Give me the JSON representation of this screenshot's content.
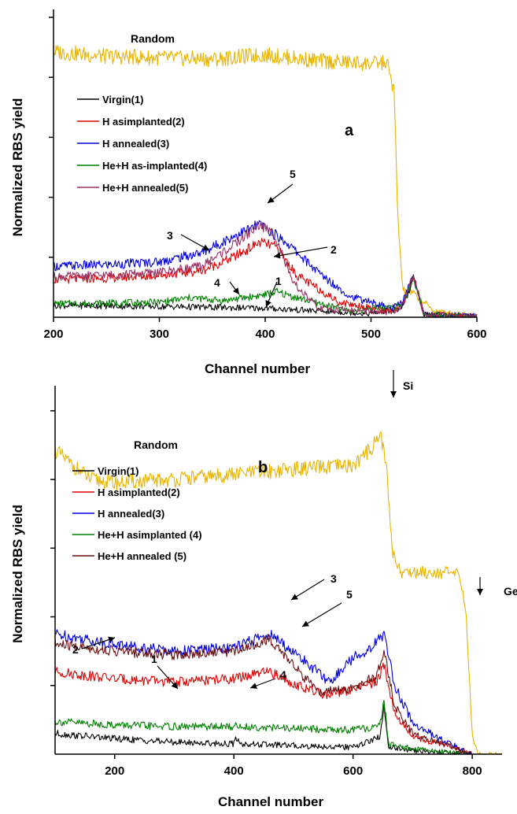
{
  "chart_data": [
    {
      "type": "line",
      "panel_label": "a",
      "xlabel": "Channel number",
      "ylabel": "Normalized RBS yield",
      "xlim": [
        200,
        600
      ],
      "xticks": [
        200,
        300,
        400,
        500,
        600
      ],
      "ylim": [
        0,
        1.0
      ],
      "yticks": [
        0.2,
        0.4,
        0.6,
        0.8,
        1.0
      ],
      "series": [
        {
          "name": "Random",
          "color": "#e8b400",
          "x": [
            200,
            250,
            300,
            350,
            400,
            450,
            500,
            515,
            522,
            525,
            530,
            540,
            560,
            600
          ],
          "y": [
            0.885,
            0.87,
            0.865,
            0.86,
            0.875,
            0.855,
            0.845,
            0.85,
            0.75,
            0.35,
            0.09,
            0.08,
            0.02,
            0.005
          ]
        },
        {
          "name": "Virgin(1)",
          "color": "#000000",
          "x": [
            200,
            300,
            400,
            500,
            530,
            540,
            550,
            600
          ],
          "y": [
            0.04,
            0.036,
            0.03,
            0.012,
            0.03,
            0.13,
            0.01,
            0.005
          ]
        },
        {
          "name": "H asimplanted(2)",
          "color": "#e00000",
          "x": [
            200,
            250,
            300,
            340,
            370,
            395,
            410,
            430,
            470,
            520,
            530,
            540,
            550,
            600
          ],
          "y": [
            0.125,
            0.13,
            0.14,
            0.155,
            0.2,
            0.25,
            0.235,
            0.14,
            0.05,
            0.02,
            0.04,
            0.14,
            0.01,
            0.005
          ]
        },
        {
          "name": "H annealed(3)",
          "color": "#0000e0",
          "x": [
            200,
            250,
            300,
            340,
            370,
            395,
            420,
            450,
            480,
            520,
            530,
            540,
            550,
            600
          ],
          "y": [
            0.17,
            0.175,
            0.185,
            0.215,
            0.27,
            0.31,
            0.25,
            0.15,
            0.07,
            0.03,
            0.05,
            0.14,
            0.01,
            0.005
          ]
        },
        {
          "name": "He+H as-implanted(4)",
          "color": "#008000",
          "x": [
            200,
            300,
            330,
            360,
            400,
            410,
            430,
            480,
            530,
            540,
            550,
            600
          ],
          "y": [
            0.045,
            0.05,
            0.065,
            0.055,
            0.075,
            0.085,
            0.065,
            0.02,
            0.04,
            0.135,
            0.01,
            0.005
          ]
        },
        {
          "name": "He+H annealed(5)",
          "color": "#993366",
          "x": [
            200,
            250,
            300,
            340,
            370,
            395,
            410,
            425,
            450,
            520,
            530,
            540,
            550,
            600
          ],
          "y": [
            0.135,
            0.14,
            0.15,
            0.17,
            0.24,
            0.31,
            0.27,
            0.12,
            0.03,
            0.015,
            0.04,
            0.14,
            0.01,
            0.005
          ]
        }
      ],
      "annotations": [
        {
          "text": "Random"
        },
        {
          "text": "1"
        },
        {
          "text": "2"
        },
        {
          "text": "3"
        },
        {
          "text": "4"
        },
        {
          "text": "5"
        }
      ]
    },
    {
      "type": "line",
      "panel_label": "b",
      "xlabel": "Channel number",
      "ylabel": "Normalized RBS yield",
      "xlim": [
        100,
        850
      ],
      "xticks": [
        200,
        400,
        600,
        800
      ],
      "ylim": [
        0,
        1.05
      ],
      "yticks": [
        0.2,
        0.4,
        0.6,
        0.8,
        1.0
      ],
      "series": [
        {
          "name": "Random",
          "color": "#e8b400",
          "x": [
            100,
            130,
            160,
            200,
            300,
            400,
            500,
            600,
            630,
            645,
            655,
            665,
            680,
            700,
            750,
            780,
            790,
            800,
            810,
            850
          ],
          "y": [
            0.885,
            0.84,
            0.8,
            0.79,
            0.8,
            0.815,
            0.83,
            0.84,
            0.89,
            0.935,
            0.86,
            0.6,
            0.53,
            0.53,
            0.53,
            0.52,
            0.4,
            0.05,
            0.0,
            0.0
          ]
        },
        {
          "name": "Virgin(1)",
          "color": "#000000",
          "x": [
            100,
            200,
            300,
            400,
            405,
            410,
            500,
            600,
            645,
            652,
            660,
            700,
            800
          ],
          "y": [
            0.06,
            0.045,
            0.035,
            0.03,
            0.05,
            0.03,
            0.025,
            0.02,
            0.05,
            0.14,
            0.02,
            0.01,
            0.0
          ]
        },
        {
          "name": "H  asimplanted(2)",
          "color": "#e00000",
          "x": [
            100,
            200,
            300,
            400,
            460,
            520,
            560,
            600,
            640,
            652,
            670,
            700,
            750,
            800
          ],
          "y": [
            0.24,
            0.22,
            0.21,
            0.22,
            0.24,
            0.19,
            0.17,
            0.19,
            0.21,
            0.26,
            0.12,
            0.05,
            0.03,
            0.0
          ]
        },
        {
          "name": "H annealed(3)",
          "color": "#0000e0",
          "x": [
            100,
            200,
            300,
            400,
            460,
            520,
            560,
            600,
            630,
            652,
            670,
            700,
            750,
            800
          ],
          "y": [
            0.35,
            0.32,
            0.3,
            0.31,
            0.35,
            0.27,
            0.21,
            0.28,
            0.31,
            0.35,
            0.2,
            0.09,
            0.04,
            0.0
          ]
        },
        {
          "name": "He+H asimplanted (4)",
          "color": "#008000",
          "x": [
            100,
            200,
            300,
            400,
            405,
            410,
            500,
            600,
            645,
            652,
            660,
            700,
            800
          ],
          "y": [
            0.095,
            0.085,
            0.08,
            0.08,
            0.085,
            0.08,
            0.075,
            0.07,
            0.08,
            0.16,
            0.03,
            0.015,
            0.0
          ]
        },
        {
          "name": "He+H annealed (5)",
          "color": "#6b0f0f",
          "x": [
            100,
            200,
            300,
            400,
            460,
            510,
            540,
            600,
            640,
            652,
            670,
            700,
            750,
            800
          ],
          "y": [
            0.32,
            0.3,
            0.29,
            0.3,
            0.335,
            0.24,
            0.18,
            0.19,
            0.23,
            0.3,
            0.14,
            0.06,
            0.03,
            0.0
          ]
        }
      ],
      "annotations": [
        {
          "text": "Random"
        },
        {
          "text": "Si"
        },
        {
          "text": "Ge"
        },
        {
          "text": "1"
        },
        {
          "text": "2"
        },
        {
          "text": "3"
        },
        {
          "text": "4"
        },
        {
          "text": "5"
        }
      ]
    }
  ]
}
